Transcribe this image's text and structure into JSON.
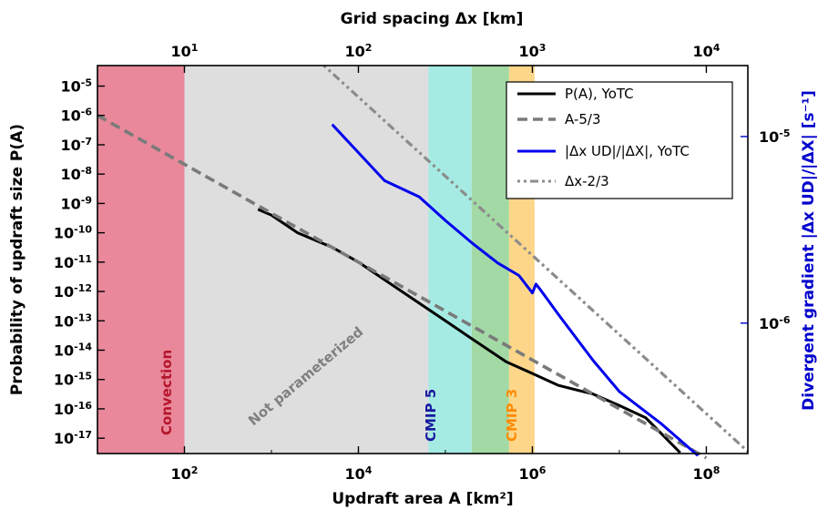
{
  "chart_data": {
    "type": "line",
    "xlabel": "Updraft area A [km²]",
    "top_xlabel": "Grid spacing Δx [km]",
    "ylabel": "Probability of updraft size P(A)",
    "y2label": "Divergent gradient |Δx UD|/|ΔX| [s⁻¹]",
    "xscale": "log",
    "yscale": "log",
    "y2scale": "log",
    "xlim": [
      10,
      300000000
    ],
    "ylim": [
      3e-18,
      5e-05
    ],
    "y2lim": [
      2e-07,
      2.4e-05
    ],
    "x_ticks": [
      {
        "base": "10",
        "exp": "2",
        "value": 100
      },
      {
        "base": "10",
        "exp": "4",
        "value": 10000
      },
      {
        "base": "10",
        "exp": "6",
        "value": 1000000
      },
      {
        "base": "10",
        "exp": "8",
        "value": 100000000
      }
    ],
    "top_ticks": [
      {
        "base": "10",
        "exp": "1",
        "value": 10
      },
      {
        "base": "10",
        "exp": "2",
        "value": 100
      },
      {
        "base": "10",
        "exp": "3",
        "value": 1000
      },
      {
        "base": "10",
        "exp": "4",
        "value": 10000
      }
    ],
    "y_ticks": [
      {
        "base": "10",
        "exp": "-5",
        "value": -5
      },
      {
        "base": "10",
        "exp": "-6",
        "value": -6
      },
      {
        "base": "10",
        "exp": "-7",
        "value": -7
      },
      {
        "base": "10",
        "exp": "-8",
        "value": -8
      },
      {
        "base": "10",
        "exp": "-9",
        "value": -9
      },
      {
        "base": "10",
        "exp": "-10",
        "value": -10
      },
      {
        "base": "10",
        "exp": "-11",
        "value": -11
      },
      {
        "base": "10",
        "exp": "-12",
        "value": -12
      },
      {
        "base": "10",
        "exp": "-13",
        "value": -13
      },
      {
        "base": "10",
        "exp": "-14",
        "value": -14
      },
      {
        "base": "10",
        "exp": "-15",
        "value": -15
      },
      {
        "base": "10",
        "exp": "-16",
        "value": -16
      },
      {
        "base": "10",
        "exp": "-17",
        "value": -17
      }
    ],
    "y2_ticks": [
      {
        "base": "10",
        "exp": "-5",
        "value": -5
      },
      {
        "base": "10",
        "exp": "-6",
        "value": -6
      }
    ],
    "bands": [
      {
        "label": "Convection",
        "x0": 10,
        "x1": 100,
        "fill": "#e8889a",
        "text_color": "#b5152b"
      },
      {
        "label": "Not parameterized",
        "x0": 100,
        "x1": 64000,
        "fill": "#dedede",
        "text_color": "#808080"
      },
      {
        "label": "CMIP 5",
        "x0": 64000,
        "x1": 200000,
        "fill": "#a5ebe3",
        "text_color": "#1a1aa0"
      },
      {
        "label": "",
        "x0": 200000,
        "x1": 540000,
        "fill": "#a3d9a5",
        "text_color": ""
      },
      {
        "label": "CMIP 3",
        "x0": 540000,
        "x1": 1060000,
        "fill": "#fdd68a",
        "text_color": "#ff8c00"
      }
    ],
    "series": [
      {
        "name": "P(A), YoTC",
        "axis": "left",
        "color": "#000000",
        "style": "solid",
        "x": [
          700,
          1000,
          2000,
          5000,
          10000,
          20000,
          50000,
          100000,
          200000,
          500000,
          1000000,
          2000000,
          5000000,
          10000000,
          20000000,
          50000000
        ],
        "y": [
          6.3e-10,
          4e-10,
          1e-10,
          3.2e-11,
          1e-11,
          2.5e-12,
          4e-13,
          1e-13,
          2.5e-14,
          4e-15,
          1.6e-15,
          6.3e-16,
          3.2e-16,
          1.3e-16,
          5e-17,
          3.2e-18
        ]
      },
      {
        "name": "A^-5/3",
        "axis": "left",
        "color": "#7a7a7a",
        "style": "dashed",
        "x": [
          10,
          100000000
        ],
        "y": [
          1e-06,
          2.15e-18
        ]
      },
      {
        "name": "|Δx UD|/|ΔX|, YoTC",
        "axis": "right",
        "color": "#0000ee",
        "style": "solid",
        "x": [
          5000,
          20000,
          50000,
          100000,
          200000,
          400000,
          700000,
          1000000,
          1100000,
          1250000,
          2000000,
          5000000,
          10000000,
          30000000,
          80000000
        ],
        "y": [
          1.16e-05,
          5.8e-06,
          4.75e-06,
          3.55e-06,
          2.7e-06,
          2.1e-06,
          1.8e-06,
          1.45e-06,
          1.62e-06,
          1.5e-06,
          1.11e-06,
          6.3e-07,
          4.3e-07,
          2.9e-07,
          1.95e-07
        ]
      },
      {
        "name": "Δx^-2/3",
        "axis": "right",
        "color": "#8c8c8c",
        "style": "dashdot",
        "x": [
          4000,
          300000000
        ],
        "y": [
          2.4e-05,
          2.05e-07
        ]
      }
    ],
    "legend": {
      "position": "top-right",
      "entries": [
        {
          "series": 0,
          "label": "P(A), YoTC"
        },
        {
          "series": 1,
          "label": "A-5/3"
        },
        {
          "series": 2,
          "label": "|Δx UD|/|ΔX|, YoTC"
        },
        {
          "series": 3,
          "label": "Δx-2/3"
        }
      ]
    },
    "grid": false
  },
  "colors": {
    "left_axis": "#000000",
    "right_axis": "#0000cc"
  }
}
